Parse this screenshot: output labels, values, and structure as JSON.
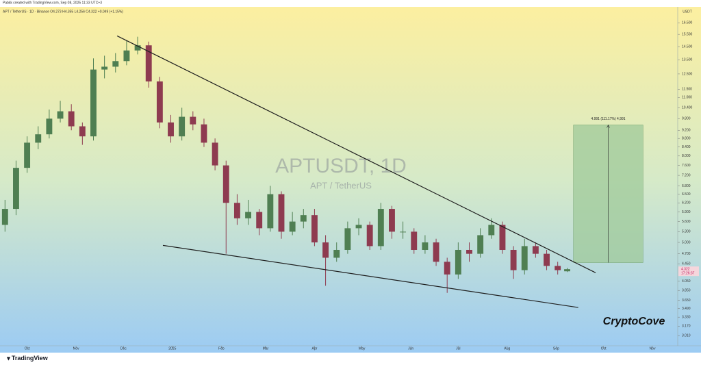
{
  "header": {
    "credit": "Pabkk created with TradingView.com, Sep 08, 2025 11:33 UTC+3",
    "symbol_line": "APT / TetherUS · 1D · Binance  O4.273 H4.355 L4.256 C4.322 +0.049 (+1.15%)"
  },
  "chart_data": {
    "type": "candlestick",
    "title": "APTUSDT, 1D",
    "subtitle": "APT / TetherUS",
    "y_unit": "USDT",
    "log_scale": true,
    "up_color": "#4f7f52",
    "down_color": "#8e3b50",
    "x": [
      -14,
      -7,
      0,
      7,
      14,
      21,
      28,
      35,
      42,
      49,
      56,
      63,
      70,
      77,
      84,
      91,
      98,
      105,
      112,
      119,
      126,
      133,
      140,
      147,
      154,
      161,
      168,
      175,
      182,
      189,
      196,
      203,
      210,
      217,
      224,
      231,
      238,
      245,
      252,
      259,
      266,
      273,
      280,
      287,
      294,
      301,
      308,
      315,
      322,
      329,
      336,
      342
    ],
    "open": [
      5.5,
      6.0,
      7.5,
      8.6,
      9.0,
      9.8,
      10.2,
      9.4,
      8.9,
      12.8,
      13.0,
      13.4,
      14.2,
      14.6,
      12.0,
      9.6,
      8.9,
      9.9,
      9.5,
      8.6,
      7.6,
      6.2,
      5.7,
      5.9,
      5.4,
      6.5,
      5.3,
      5.6,
      5.8,
      5.0,
      4.6,
      4.8,
      5.4,
      5.5,
      4.9,
      6.0,
      5.3,
      5.3,
      4.8,
      5.0,
      4.5,
      4.2,
      4.8,
      4.7,
      5.2,
      5.5,
      4.8,
      4.3,
      4.9,
      4.7,
      4.4,
      4.273
    ],
    "high": [
      6.3,
      7.8,
      8.9,
      9.4,
      10.3,
      10.8,
      10.6,
      9.6,
      13.6,
      13.8,
      14.0,
      15.0,
      15.3,
      14.9,
      12.3,
      10.0,
      10.4,
      10.2,
      9.8,
      8.8,
      7.8,
      6.5,
      6.3,
      6.0,
      6.8,
      6.6,
      5.9,
      6.0,
      6.0,
      5.2,
      5.0,
      5.6,
      5.7,
      5.6,
      6.2,
      6.1,
      5.6,
      5.4,
      5.2,
      5.1,
      4.6,
      5.0,
      5.0,
      5.4,
      5.7,
      5.6,
      4.9,
      5.1,
      5.0,
      4.8,
      4.5,
      4.355
    ],
    "low": [
      5.3,
      5.8,
      7.3,
      8.3,
      8.8,
      9.6,
      9.2,
      8.5,
      8.7,
      12.2,
      12.6,
      13.1,
      13.9,
      11.6,
      9.3,
      8.6,
      8.7,
      9.2,
      8.4,
      7.4,
      4.7,
      5.5,
      5.5,
      5.2,
      5.3,
      5.1,
      5.2,
      5.4,
      4.9,
      3.95,
      4.5,
      4.7,
      5.2,
      4.8,
      4.8,
      5.1,
      5.1,
      4.7,
      4.7,
      4.4,
      3.8,
      4.1,
      4.5,
      4.6,
      5.1,
      4.7,
      4.1,
      4.2,
      4.6,
      4.3,
      4.2,
      4.256
    ],
    "close": [
      6.0,
      7.5,
      8.6,
      9.0,
      9.8,
      10.2,
      9.4,
      8.9,
      12.8,
      13.0,
      13.4,
      14.2,
      14.6,
      12.0,
      9.6,
      8.9,
      9.9,
      9.5,
      8.6,
      7.6,
      6.2,
      5.7,
      5.9,
      5.4,
      6.5,
      5.3,
      5.6,
      5.8,
      5.0,
      4.6,
      4.8,
      5.4,
      5.5,
      4.9,
      6.0,
      5.3,
      5.3,
      4.8,
      5.0,
      4.5,
      4.2,
      4.8,
      4.7,
      5.2,
      5.5,
      4.8,
      4.3,
      4.9,
      4.7,
      4.4,
      4.3,
      4.322
    ],
    "xlim": [
      -15,
      412
    ],
    "ylim": [
      2.85,
      18.0
    ],
    "xticks": [
      {
        "value": 0,
        "label": "Oct"
      },
      {
        "value": 31,
        "label": "Nov"
      },
      {
        "value": 61,
        "label": "Dec"
      },
      {
        "value": 92,
        "label": "2025"
      },
      {
        "value": 123,
        "label": "Feb"
      },
      {
        "value": 151,
        "label": "Mar"
      },
      {
        "value": 182,
        "label": "Apr"
      },
      {
        "value": 212,
        "label": "May"
      },
      {
        "value": 243,
        "label": "Jun"
      },
      {
        "value": 273,
        "label": "Jul"
      },
      {
        "value": 304,
        "label": "Aug"
      },
      {
        "value": 335,
        "label": "Sep"
      },
      {
        "value": 365,
        "label": "Oct"
      },
      {
        "value": 396,
        "label": "Nov"
      }
    ],
    "yticks": [
      {
        "value": 16.5,
        "label": "16.500"
      },
      {
        "value": 15.5,
        "label": "15.500"
      },
      {
        "value": 14.5,
        "label": "14.500"
      },
      {
        "value": 13.5,
        "label": "13.500"
      },
      {
        "value": 12.5,
        "label": "12.500"
      },
      {
        "value": 11.5,
        "label": "11.500"
      },
      {
        "value": 11,
        "label": "11.000"
      },
      {
        "value": 10.4,
        "label": "10.400"
      },
      {
        "value": 9.8,
        "label": "9.800"
      },
      {
        "value": 9.2,
        "label": "9.200"
      },
      {
        "value": 8.8,
        "label": "8.800"
      },
      {
        "value": 8.4,
        "label": "8.400"
      },
      {
        "value": 8,
        "label": "8.000"
      },
      {
        "value": 7.6,
        "label": "7.600"
      },
      {
        "value": 7.2,
        "label": "7.200"
      },
      {
        "value": 6.8,
        "label": "6.800"
      },
      {
        "value": 6.5,
        "label": "6.500"
      },
      {
        "value": 6.2,
        "label": "6.200"
      },
      {
        "value": 5.9,
        "label": "5.900"
      },
      {
        "value": 5.6,
        "label": "5.600"
      },
      {
        "value": 5.3,
        "label": "5.300"
      },
      {
        "value": 5,
        "label": "5.000"
      },
      {
        "value": 4.7,
        "label": "4.700"
      },
      {
        "value": 4.45,
        "label": "4.450"
      },
      {
        "value": 4.05,
        "label": "4.050"
      },
      {
        "value": 3.85,
        "label": "3.850"
      },
      {
        "value": 3.65,
        "label": "3.650"
      },
      {
        "value": 3.49,
        "label": "3.490"
      },
      {
        "value": 3.33,
        "label": "3.330"
      },
      {
        "value": 3.17,
        "label": "3.170"
      },
      {
        "value": 3.01,
        "label": "3.010"
      }
    ],
    "trendlines": [
      {
        "x": [
          57,
          360
        ],
        "y": [
          15.37,
          4.24
        ]
      },
      {
        "x": [
          86,
          349
        ],
        "y": [
          4.92,
          3.51
        ]
      }
    ],
    "target_box": {
      "x": [
        346,
        390
      ],
      "y": [
        4.48,
        9.47
      ],
      "color": "#9fc99a",
      "label": "4.991 (111.17%) 4,991"
    },
    "countdown": "17:26:37"
  },
  "watermark_brand": "CryptoCove",
  "footer": {
    "logo": "TradingView"
  }
}
